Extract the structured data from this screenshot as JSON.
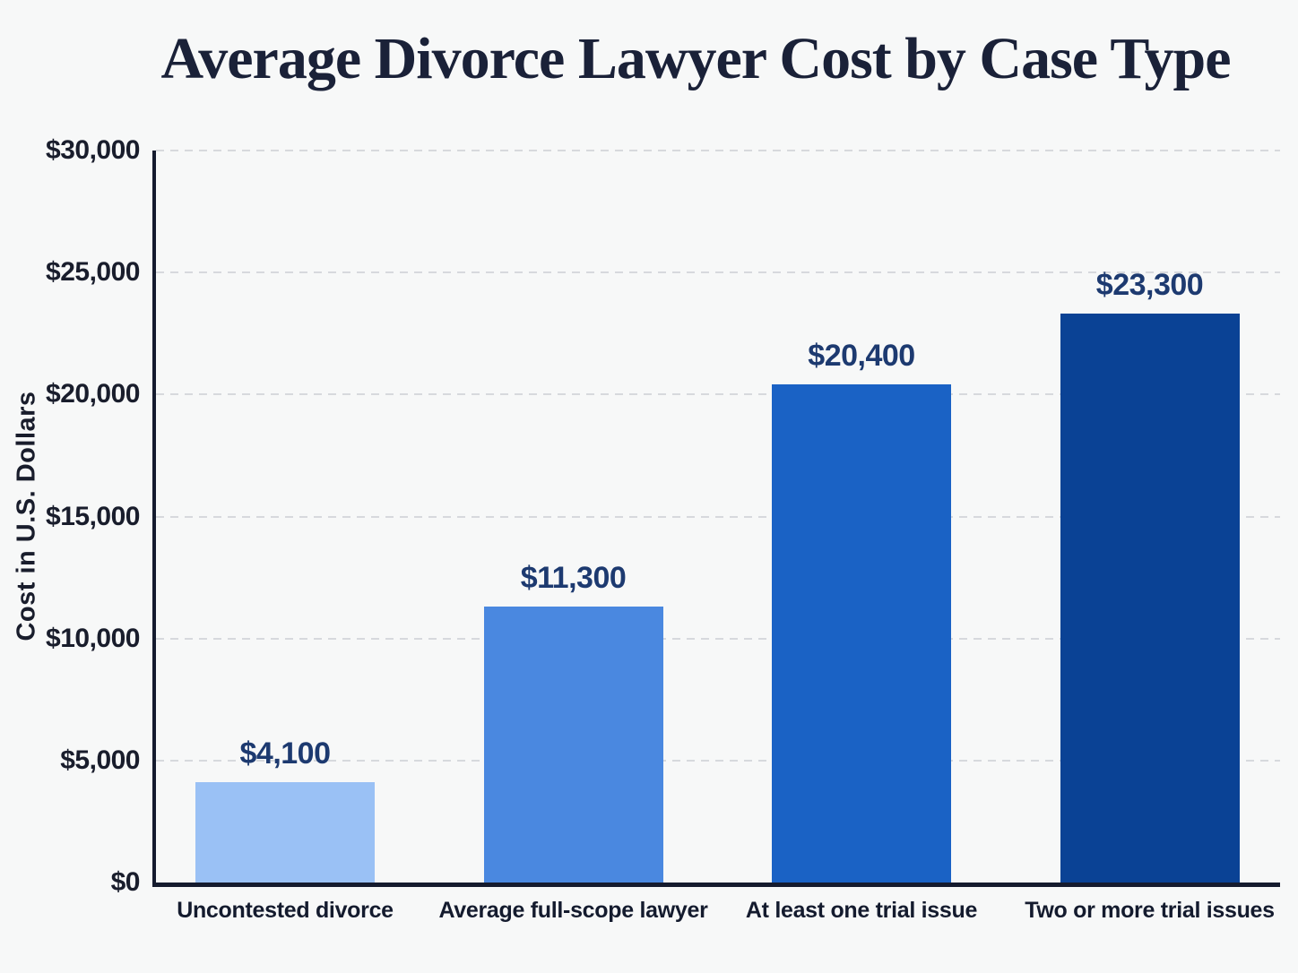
{
  "chart_data": {
    "type": "bar",
    "title": "Average Divorce Lawyer Cost by Case Type",
    "xlabel": "",
    "ylabel": "Cost in U.S. Dollars",
    "categories": [
      "Uncontested divorce",
      "Average full-scope lawyer",
      "At least one trial issue",
      "Two or more trial issues"
    ],
    "values": [
      4100,
      11300,
      20400,
      23300
    ],
    "value_labels": [
      "$4,100",
      "$11,300",
      "$20,400",
      "$23,300"
    ],
    "bar_colors": [
      "#9ac1f5",
      "#4a88e0",
      "#1a62c5",
      "#0a4295"
    ],
    "ylim": [
      0,
      30000
    ],
    "ytick_step": 5000,
    "yticks": [
      0,
      5000,
      10000,
      15000,
      20000,
      25000,
      30000
    ],
    "ytick_labels": [
      "$0",
      "$5,000",
      "$10,000",
      "$15,000",
      "$20,000",
      "$25,000",
      "$30,000"
    ],
    "grid": "horizontal-dashed",
    "legend": "none",
    "colors": {
      "background": "#f7f8f8",
      "title_text": "#1a2138",
      "axis_line": "#151b2e",
      "tick_text": "#191d2c",
      "category_text": "#141b2e",
      "value_label_text": "#1d3a70",
      "gridline": "#d7d9dd"
    }
  }
}
